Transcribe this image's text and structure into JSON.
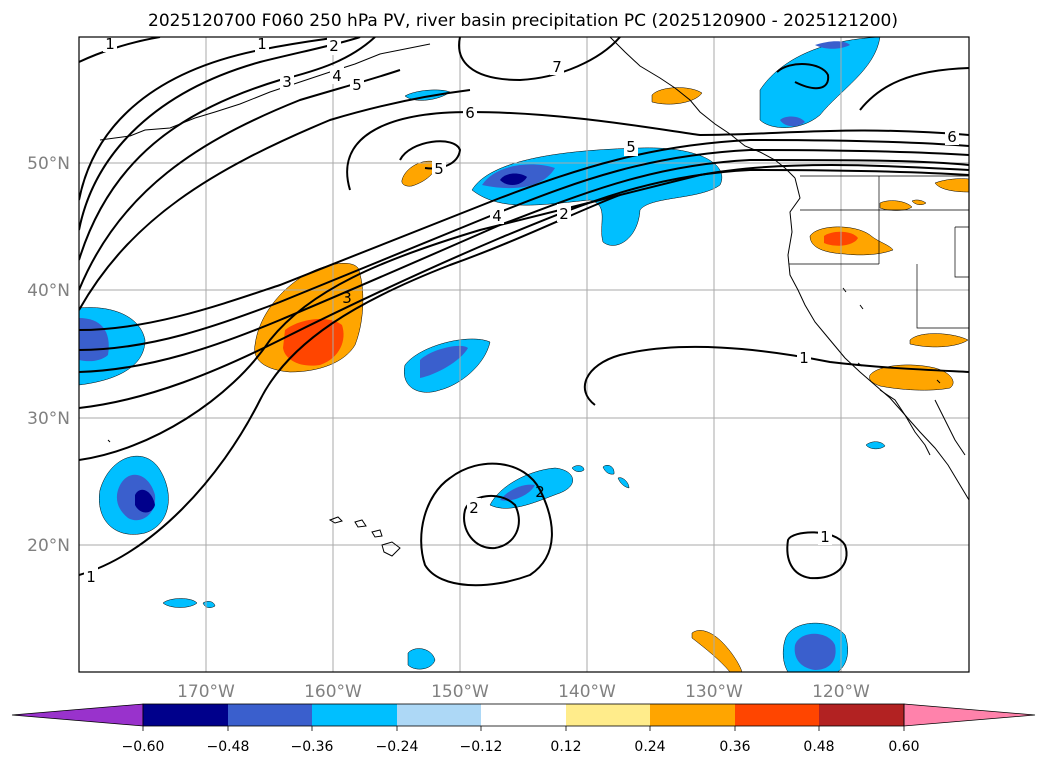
{
  "title": "2025120700 F060 250 hPa PV, river basin precipitation PC (2025120900 - 2025121200)",
  "map": {
    "lon_ticks": [
      "170°W",
      "160°W",
      "150°W",
      "140°W",
      "130°W",
      "120°W"
    ],
    "lat_ticks": [
      "50°N",
      "40°N",
      "30°N",
      "20°N"
    ]
  },
  "pv_contour_labels": [
    "1",
    "1",
    "2",
    "3",
    "4",
    "5",
    "7",
    "6",
    "5",
    "5",
    "6",
    "4",
    "2",
    "3",
    "1",
    "2",
    "2",
    "1",
    "1"
  ],
  "colorbar": {
    "ticks": [
      "−0.60",
      "−0.48",
      "−0.36",
      "−0.24",
      "−0.12",
      "0.12",
      "0.24",
      "0.36",
      "0.48",
      "0.60"
    ],
    "colors": [
      "#9932CC",
      "#00008B",
      "#3A5FCD",
      "#00BFFF",
      "#ADD8F6",
      "#FFFFFF",
      "#FFEC8B",
      "#FFA500",
      "#FF4500",
      "#B22222",
      "#FF82AB"
    ]
  }
}
